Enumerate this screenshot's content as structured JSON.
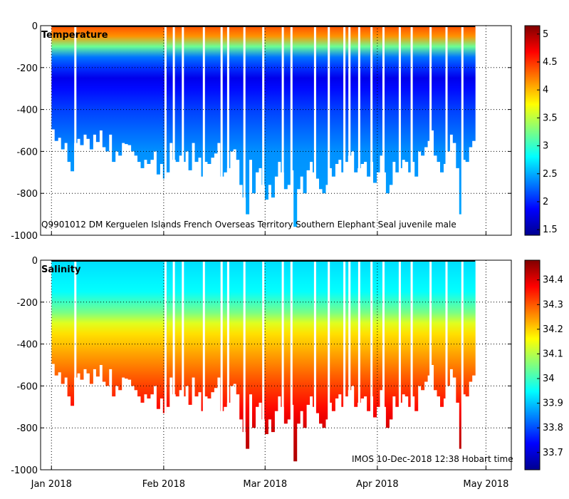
{
  "chart_data": [
    {
      "type": "heatmap",
      "title": "Temperature",
      "annotation": "Q9901012 DM Kerguelen Islands French Overseas Territory Southern Elephant Seal juvenile male",
      "ylim": [
        -1000,
        0
      ],
      "yticks": [
        0,
        -200,
        -400,
        -600,
        -800,
        -1000
      ],
      "ytick_labels": [
        "0",
        "-200",
        "-400",
        "-600",
        "-800",
        "-1000"
      ],
      "colorbar": {
        "range": [
          1.4,
          5.15
        ],
        "ticks": [
          1.5,
          2,
          2.5,
          3,
          3.5,
          4,
          4.5,
          5
        ],
        "tick_labels": [
          "1.5",
          "2",
          "2.5",
          "3",
          "3.5",
          "4",
          "4.5",
          "5"
        ],
        "profile": [
          {
            "depth": 0,
            "value": 4.4
          },
          {
            "depth": -60,
            "value": 4.1
          },
          {
            "depth": -100,
            "value": 3.2
          },
          {
            "depth": -150,
            "value": 2.3
          },
          {
            "depth": -250,
            "value": 1.8
          },
          {
            "depth": -400,
            "value": 2.1
          },
          {
            "depth": -600,
            "value": 2.4
          },
          {
            "depth": -1000,
            "value": 2.5
          }
        ]
      },
      "grid": true
    },
    {
      "type": "heatmap",
      "title": "Salinity",
      "annotation": "IMOS 10-Dec-2018 12:38 Hobart time",
      "ylim": [
        -1000,
        0
      ],
      "yticks": [
        0,
        -200,
        -400,
        -600,
        -800,
        -1000
      ],
      "ytick_labels": [
        "0",
        "-200",
        "-400",
        "-600",
        "-800",
        "-1000"
      ],
      "colorbar": {
        "range": [
          33.63,
          34.48
        ],
        "ticks": [
          33.7,
          33.8,
          33.9,
          34,
          34.1,
          34.2,
          34.3,
          34.4
        ],
        "tick_labels": [
          "33.7",
          "33.8",
          "33.9",
          "34",
          "34.1",
          "34.2",
          "34.3",
          "34.4"
        ],
        "profile": [
          {
            "depth": 0,
            "value": 33.92
          },
          {
            "depth": -150,
            "value": 33.95
          },
          {
            "depth": -250,
            "value": 34.05
          },
          {
            "depth": -320,
            "value": 34.17
          },
          {
            "depth": -450,
            "value": 34.24
          },
          {
            "depth": -600,
            "value": 34.32
          },
          {
            "depth": -800,
            "value": 34.41
          },
          {
            "depth": -1000,
            "value": 34.45
          }
        ]
      },
      "grid": true
    }
  ],
  "x_axis": {
    "xlim_days": [
      -3,
      127
    ],
    "ticks_days": [
      0,
      31,
      59,
      90,
      120
    ],
    "tick_labels": [
      "Jan 2018",
      "Feb 2018",
      "Mar 2018",
      "Apr 2018",
      "May 2018"
    ]
  },
  "profile_max_depths_m": [
    495,
    550,
    535,
    590,
    560,
    650,
    695,
    560,
    540,
    570,
    520,
    540,
    590,
    520,
    555,
    500,
    580,
    600,
    520,
    650,
    600,
    620,
    560,
    565,
    570,
    600,
    620,
    650,
    680,
    640,
    660,
    640,
    600,
    710,
    660,
    730,
    700,
    560,
    640,
    650,
    620,
    650,
    600,
    690,
    560,
    650,
    630,
    720,
    650,
    660,
    630,
    610,
    560,
    720,
    700,
    680,
    600,
    590,
    640,
    760,
    820,
    900,
    640,
    800,
    700,
    680,
    760,
    830,
    760,
    820,
    720,
    650,
    700,
    780,
    760,
    690,
    960,
    780,
    720,
    800,
    690,
    650,
    700,
    730,
    780,
    800,
    760,
    680,
    720,
    660,
    640,
    700,
    650,
    620,
    600,
    700,
    680,
    660,
    650,
    720,
    650,
    750,
    700,
    620,
    700,
    800,
    760,
    650,
    700,
    680,
    640,
    650,
    700,
    650,
    720,
    600,
    620,
    580,
    550,
    500,
    620,
    650,
    700,
    660,
    600,
    520,
    560,
    680,
    900,
    640,
    650,
    580,
    550
  ],
  "gap_days": [
    6.3,
    31.2,
    33.5,
    36.0,
    41.8,
    46.7,
    48.5,
    53.0,
    58.2,
    63.6,
    66.0,
    72.5,
    76.3,
    80.6,
    82.0,
    84.7,
    88.1,
    91.4,
    95.9,
    99.2,
    104.4,
    108.8,
    113.2,
    117.6,
    119.8
  ]
}
